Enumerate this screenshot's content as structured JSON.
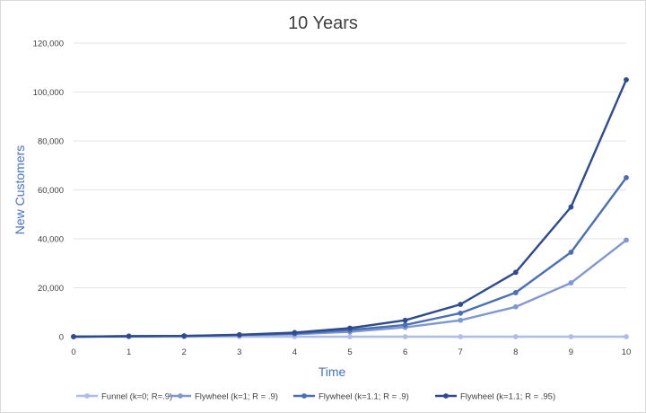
{
  "chart_data": {
    "type": "line",
    "title": "10 Years",
    "xlabel": "Time",
    "ylabel": "New Customers",
    "x": [
      0,
      1,
      2,
      3,
      4,
      5,
      6,
      7,
      8,
      9,
      10
    ],
    "x_tick_labels": [
      "0",
      "1",
      "2",
      "3",
      "4",
      "5",
      "6",
      "7",
      "8",
      "9",
      "10"
    ],
    "ylim": [
      0,
      120000
    ],
    "y_ticks": [
      0,
      20000,
      40000,
      60000,
      80000,
      100000,
      120000
    ],
    "y_tick_labels": [
      "0",
      "20,000",
      "40,000",
      "60,000",
      "80,000",
      "100,000",
      "120,000"
    ],
    "grid": "horizontal",
    "legend_position": "bottom",
    "label_color": "#4472c4",
    "series": [
      {
        "name": "Funnel (k=0; R=.9)",
        "color": "#adbde3",
        "values": [
          0,
          0,
          0,
          0,
          0,
          0,
          0,
          0,
          0,
          0,
          0
        ]
      },
      {
        "name": "Flywheel (k=1; R = .9)",
        "color": "#7f97d2",
        "values": [
          0,
          200,
          300,
          600,
          1000,
          2000,
          3800,
          6700,
          12200,
          22000,
          39500
        ]
      },
      {
        "name": "Flywheel (k=1.1; R = .9)",
        "color": "#4a6fb5",
        "values": [
          0,
          200,
          300,
          700,
          1300,
          2700,
          4800,
          9600,
          18000,
          34500,
          65000
        ]
      },
      {
        "name": "Flywheel (k=1.1; R = .95)",
        "color": "#2d4b8e",
        "values": [
          0,
          200,
          300,
          800,
          1700,
          3500,
          6700,
          13200,
          26300,
          53000,
          105000
        ]
      }
    ]
  }
}
